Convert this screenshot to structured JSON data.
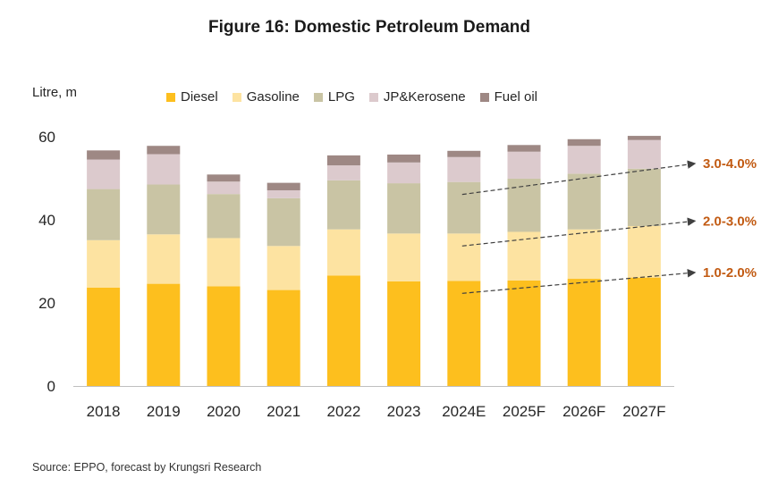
{
  "title": "Figure 16: Domestic Petroleum Demand",
  "source": "Source: EPPO, forecast by Krungsri Research",
  "colors": {
    "Diesel": "#fdbf1e",
    "Gasoline": "#fde3a1",
    "LPG": "#c9c4a4",
    "JP&Kerosene": "#dccacd",
    "Fuel oil": "#9e8884",
    "annotation": "#c25b13",
    "arrow": "#404040"
  },
  "chart_data": {
    "type": "bar",
    "stacked": true,
    "ylabel": "Litre, m",
    "ylim": [
      0,
      60
    ],
    "yticks": [
      0,
      20,
      40,
      60
    ],
    "grid": false,
    "legend_position": "top",
    "categories": [
      "2018",
      "2019",
      "2020",
      "2021",
      "2022",
      "2023",
      "2024E",
      "2025F",
      "2026F",
      "2027F"
    ],
    "series": [
      {
        "name": "Diesel",
        "values": [
          23.7,
          24.6,
          24.0,
          23.1,
          26.6,
          25.2,
          25.3,
          25.4,
          25.8,
          26.1
        ]
      },
      {
        "name": "Gasoline",
        "values": [
          11.4,
          11.9,
          11.6,
          10.6,
          11.1,
          11.5,
          11.4,
          11.7,
          11.9,
          12.4
        ]
      },
      {
        "name": "LPG",
        "values": [
          12.3,
          12.0,
          10.6,
          11.5,
          11.8,
          12.1,
          12.4,
          12.8,
          13.4,
          13.8
        ]
      },
      {
        "name": "JP&Kerosene",
        "values": [
          7.1,
          7.3,
          3.0,
          1.9,
          3.6,
          5.0,
          6.0,
          6.5,
          6.7,
          6.9
        ]
      },
      {
        "name": "Fuel oil",
        "values": [
          2.2,
          2.0,
          1.7,
          1.8,
          2.4,
          1.9,
          1.5,
          1.6,
          1.6,
          1.0
        ]
      }
    ],
    "annotations": [
      {
        "label": "3.0-4.0%",
        "series": "LPG"
      },
      {
        "label": "2.0-3.0%",
        "series": "Gasoline"
      },
      {
        "label": "1.0-2.0%",
        "series": "Diesel"
      }
    ]
  }
}
